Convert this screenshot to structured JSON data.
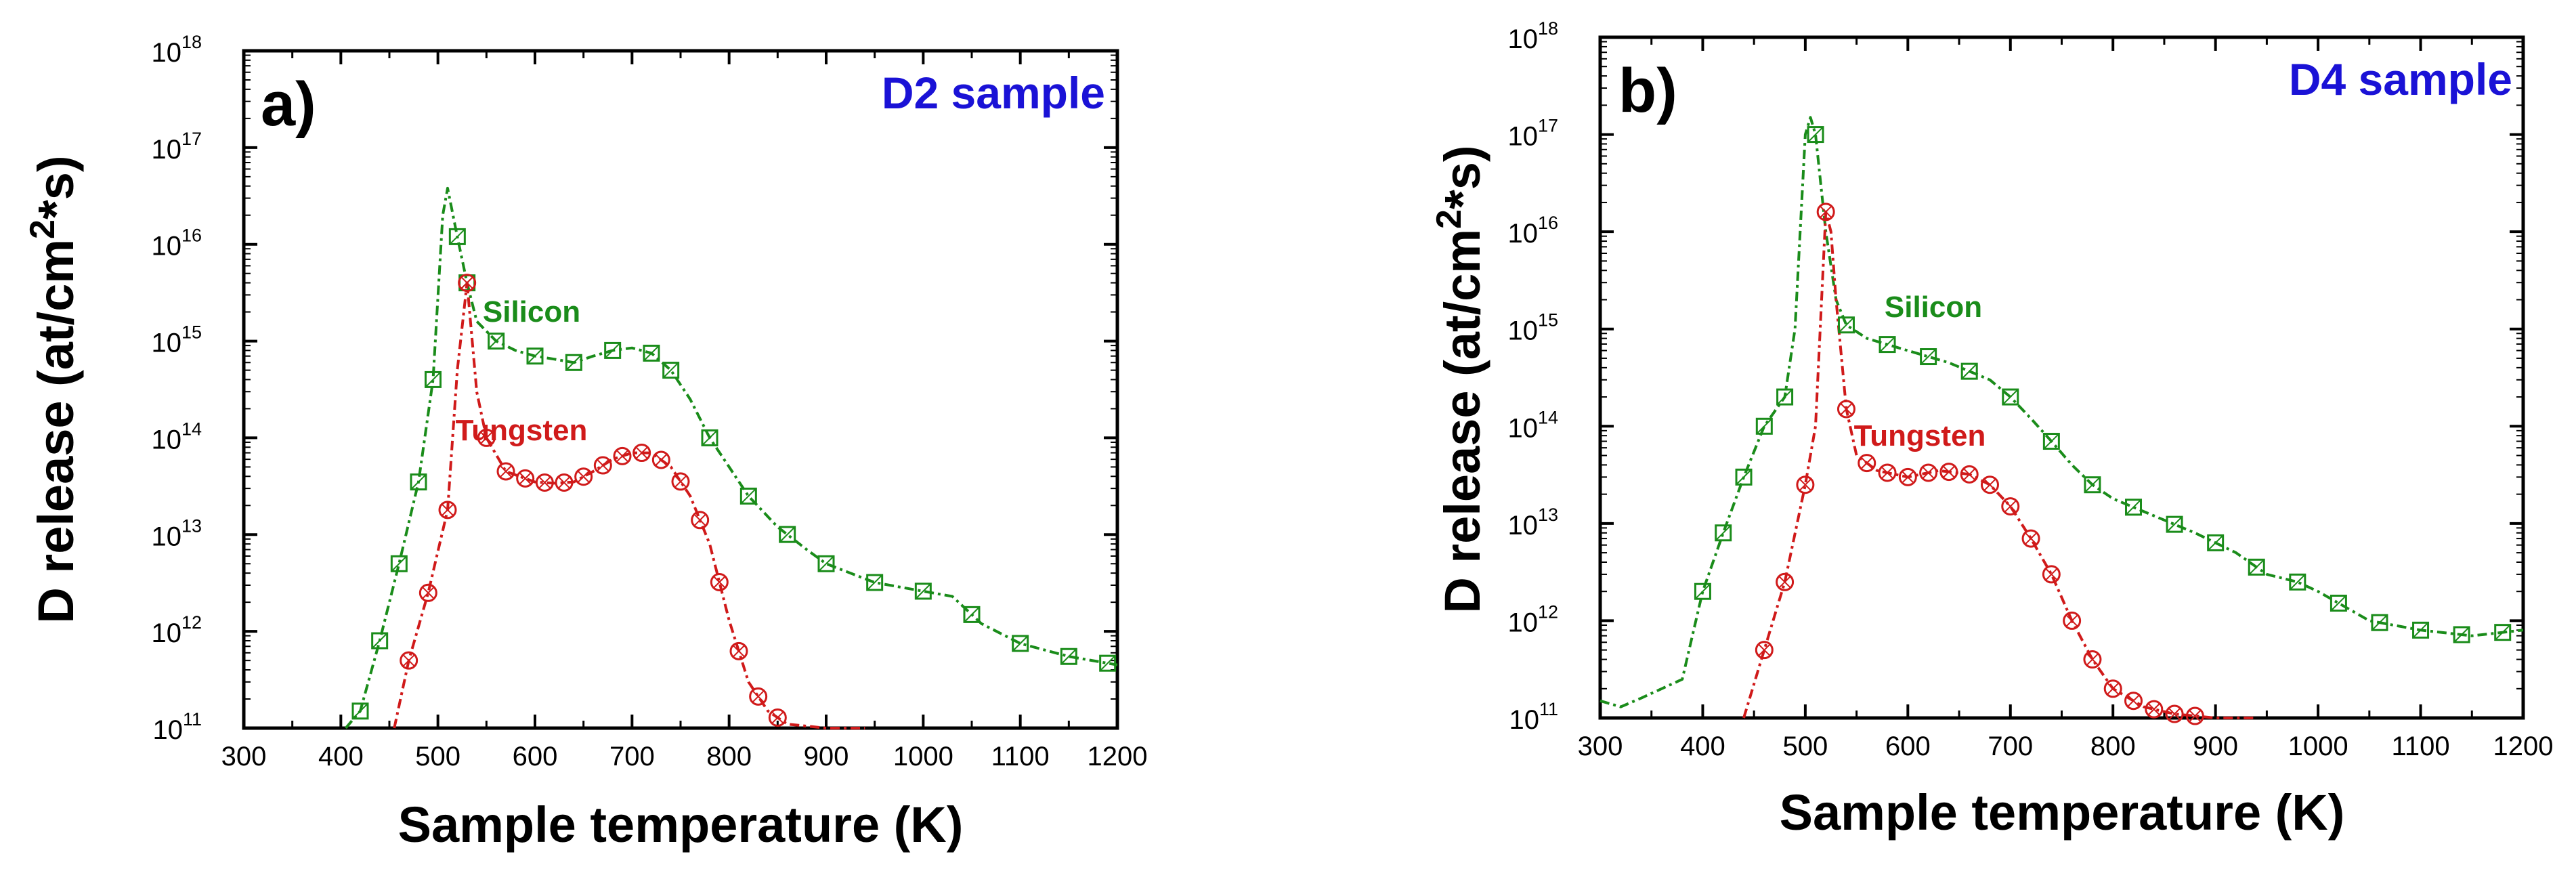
{
  "chart_data": [
    {
      "type": "line",
      "panel_label": "a)",
      "title": "D2 sample",
      "xlabel": "Sample temperature (K)",
      "ylabel_main": "D release (at/cm",
      "ylabel_sup": "2",
      "ylabel_end": "*s)",
      "xlim": [
        300,
        1200
      ],
      "ylim": [
        100000000000.0,
        1e+18
      ],
      "y_scale": "log",
      "x_ticks": [
        "300",
        "400",
        "500",
        "600",
        "700",
        "800",
        "900",
        "1000",
        "1100",
        "1200"
      ],
      "y_ticks": [
        {
          "base": "10",
          "exp": "11"
        },
        {
          "base": "10",
          "exp": "12"
        },
        {
          "base": "10",
          "exp": "13"
        },
        {
          "base": "10",
          "exp": "14"
        },
        {
          "base": "10",
          "exp": "15"
        },
        {
          "base": "10",
          "exp": "16"
        },
        {
          "base": "10",
          "exp": "17"
        },
        {
          "base": "10",
          "exp": "18"
        }
      ],
      "series": [
        {
          "name": "Silicon",
          "color": "#1a8c1a",
          "marker": "square",
          "x": [
            405,
            420,
            440,
            460,
            480,
            495,
            505,
            510,
            520,
            530,
            540,
            560,
            580,
            600,
            620,
            640,
            660,
            680,
            700,
            720,
            740,
            760,
            780,
            800,
            820,
            850,
            880,
            900,
            950,
            1000,
            1030,
            1060,
            1100,
            1150,
            1200
          ],
          "y": [
            100000000000.0,
            150000000000.0,
            800000000000.0,
            5000000000000.0,
            35000000000000.0,
            400000000000000.0,
            2e+16,
            3.8e+16,
            1.2e+16,
            4000000000000000.0,
            1600000000000000.0,
            1000000000000000.0,
            800000000000000.0,
            700000000000000.0,
            650000000000000.0,
            600000000000000.0,
            700000000000000.0,
            800000000000000.0,
            850000000000000.0,
            750000000000000.0,
            500000000000000.0,
            250000000000000.0,
            100000000000000.0,
            50000000000000.0,
            25000000000000.0,
            12000000000000.0,
            7000000000000.0,
            5000000000000.0,
            3200000000000.0,
            2600000000000.0,
            2300000000000.0,
            1200000000000.0,
            750000000000.0,
            550000000000.0,
            450000000000.0
          ],
          "markers_x": [
            420,
            440,
            460,
            480,
            495,
            520,
            530,
            560,
            600,
            640,
            680,
            720,
            740,
            780,
            820,
            860,
            900,
            950,
            1000,
            1050,
            1100,
            1150,
            1190
          ]
        },
        {
          "name": "Tungsten",
          "color": "#d01a1a",
          "marker": "circle-x",
          "x": [
            455,
            470,
            490,
            510,
            520,
            530,
            540,
            550,
            570,
            600,
            620,
            640,
            660,
            680,
            700,
            720,
            740,
            760,
            780,
            800,
            820,
            840,
            860,
            900,
            940
          ],
          "y": [
            100000000000.0,
            500000000000.0,
            2500000000000.0,
            18000000000000.0,
            500000000000000.0,
            4000000000000000.0,
            300000000000000.0,
            100000000000000.0,
            45000000000000.0,
            35000000000000.0,
            34000000000000.0,
            35000000000000.0,
            45000000000000.0,
            60000000000000.0,
            70000000000000.0,
            70000000000000.0,
            50000000000000.0,
            25000000000000.0,
            8000000000000.0,
            1300000000000.0,
            300000000000.0,
            150000000000.0,
            110000000000.0,
            100000000000.0,
            100000000000.0
          ],
          "markers_x": [
            470,
            490,
            510,
            530,
            550,
            570,
            590,
            610,
            630,
            650,
            670,
            690,
            710,
            730,
            750,
            770,
            790,
            810,
            830,
            850
          ]
        }
      ],
      "annotations": [
        {
          "text": "Silicon",
          "color": "#1a8c1a"
        },
        {
          "text": "Tungsten",
          "color": "#d01a1a"
        }
      ]
    },
    {
      "type": "line",
      "panel_label": "b)",
      "title": "D4 sample",
      "xlabel": "Sample temperature (K)",
      "ylabel_main": "D release (at/cm",
      "ylabel_sup": "2",
      "ylabel_end": "*s)",
      "xlim": [
        300,
        1200
      ],
      "ylim": [
        100000000000.0,
        1e+18
      ],
      "y_scale": "log",
      "x_ticks": [
        "300",
        "400",
        "500",
        "600",
        "700",
        "800",
        "900",
        "1000",
        "1100",
        "1200"
      ],
      "y_ticks": [
        {
          "base": "10",
          "exp": "11"
        },
        {
          "base": "10",
          "exp": "12"
        },
        {
          "base": "10",
          "exp": "13"
        },
        {
          "base": "10",
          "exp": "14"
        },
        {
          "base": "10",
          "exp": "15"
        },
        {
          "base": "10",
          "exp": "16"
        },
        {
          "base": "10",
          "exp": "17"
        },
        {
          "base": "10",
          "exp": "18"
        }
      ],
      "series": [
        {
          "name": "Silicon",
          "color": "#1a8c1a",
          "marker": "square",
          "x": [
            300,
            320,
            340,
            360,
            380,
            400,
            420,
            440,
            460,
            480,
            490,
            500,
            505,
            510,
            520,
            530,
            540,
            560,
            600,
            640,
            680,
            700,
            720,
            740,
            760,
            780,
            800,
            840,
            880,
            920,
            950,
            980,
            1000,
            1050,
            1100,
            1150,
            1200
          ],
          "y": [
            150000000000.0,
            130000000000.0,
            160000000000.0,
            200000000000.0,
            250000000000.0,
            2000000000000.0,
            8000000000000.0,
            30000000000000.0,
            100000000000000.0,
            200000000000000.0,
            1000000000000000.0,
            1e+17,
            1.5e+17,
            1e+17,
            1e+16,
            2000000000000000.0,
            1100000000000000.0,
            800000000000000.0,
            600000000000000.0,
            450000000000000.0,
            300000000000000.0,
            200000000000000.0,
            120000000000000.0,
            70000000000000.0,
            40000000000000.0,
            25000000000000.0,
            18000000000000.0,
            12000000000000.0,
            8000000000000.0,
            5000000000000.0,
            3000000000000.0,
            2500000000000.0,
            2000000000000.0,
            1000000000000.0,
            800000000000.0,
            700000000000.0,
            800000000000.0
          ],
          "markers_x": [
            400,
            420,
            440,
            460,
            480,
            510,
            540,
            580,
            620,
            660,
            700,
            740,
            780,
            820,
            860,
            900,
            940,
            980,
            1020,
            1060,
            1100,
            1140,
            1180
          ]
        },
        {
          "name": "Tungsten",
          "color": "#d01a1a",
          "marker": "circle-x",
          "x": [
            440,
            460,
            480,
            500,
            510,
            520,
            525,
            530,
            540,
            550,
            570,
            600,
            630,
            660,
            680,
            700,
            720,
            740,
            760,
            780,
            800,
            830,
            860,
            900,
            940
          ],
          "y": [
            100000000000.0,
            500000000000.0,
            2500000000000.0,
            25000000000000.0,
            100000000000000.0,
            1.6e+16,
            1e+16,
            2000000000000000.0,
            150000000000000.0,
            50000000000000.0,
            35000000000000.0,
            30000000000000.0,
            35000000000000.0,
            32000000000000.0,
            25000000000000.0,
            15000000000000.0,
            7000000000000.0,
            3000000000000.0,
            1000000000000.0,
            400000000000.0,
            200000000000.0,
            130000000000.0,
            110000000000.0,
            100000000000.0,
            100000000000.0
          ],
          "markers_x": [
            460,
            480,
            500,
            520,
            540,
            560,
            580,
            600,
            620,
            640,
            660,
            680,
            700,
            720,
            740,
            760,
            780,
            800,
            820,
            840,
            860,
            880
          ]
        }
      ],
      "annotations": [
        {
          "text": "Silicon",
          "color": "#1a8c1a"
        },
        {
          "text": "Tungsten",
          "color": "#d01a1a"
        }
      ]
    }
  ]
}
